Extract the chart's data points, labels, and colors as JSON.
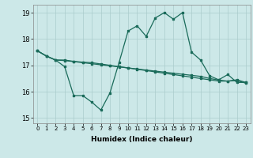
{
  "xlabel": "Humidex (Indice chaleur)",
  "xlim": [
    -0.5,
    23.5
  ],
  "ylim": [
    14.8,
    19.3
  ],
  "yticks": [
    15,
    16,
    17,
    18,
    19
  ],
  "xticks": [
    0,
    1,
    2,
    3,
    4,
    5,
    6,
    7,
    8,
    9,
    10,
    11,
    12,
    13,
    14,
    15,
    16,
    17,
    18,
    19,
    20,
    21,
    22,
    23
  ],
  "background_color": "#cce8e8",
  "grid_color": "#aacccc",
  "line_color": "#1a6b5a",
  "line1_x": [
    0,
    1,
    2,
    3,
    4,
    5,
    6,
    7,
    8,
    9,
    10,
    11,
    12,
    13,
    14,
    15,
    16,
    17,
    18,
    19,
    20,
    21,
    22,
    23
  ],
  "line1_y": [
    17.55,
    17.35,
    17.2,
    16.95,
    15.85,
    15.85,
    15.6,
    15.3,
    15.95,
    17.1,
    18.3,
    18.5,
    18.1,
    18.8,
    19.0,
    18.75,
    19.0,
    17.5,
    17.2,
    16.6,
    16.45,
    16.65,
    16.35,
    16.35
  ],
  "line2_x": [
    0,
    1,
    2,
    3,
    4,
    5,
    6,
    7,
    8,
    9,
    10,
    11,
    12,
    13,
    14,
    15,
    16,
    17,
    18,
    19,
    20,
    21,
    22,
    23
  ],
  "line2_y": [
    17.55,
    17.35,
    17.2,
    17.2,
    17.15,
    17.12,
    17.1,
    17.05,
    17.0,
    16.95,
    16.9,
    16.85,
    16.8,
    16.75,
    16.7,
    16.65,
    16.6,
    16.55,
    16.5,
    16.45,
    16.4,
    16.4,
    16.45,
    16.35
  ],
  "line3_x": [
    0,
    1,
    2,
    3,
    4,
    5,
    6,
    7,
    8,
    9,
    10,
    11,
    12,
    13,
    14,
    15,
    16,
    17,
    18,
    19,
    20,
    21,
    22,
    23
  ],
  "line3_y": [
    17.55,
    17.35,
    17.2,
    17.18,
    17.14,
    17.1,
    17.06,
    17.02,
    16.98,
    16.94,
    16.9,
    16.86,
    16.82,
    16.78,
    16.74,
    16.7,
    16.66,
    16.62,
    16.58,
    16.5,
    16.44,
    16.4,
    16.42,
    16.32
  ]
}
